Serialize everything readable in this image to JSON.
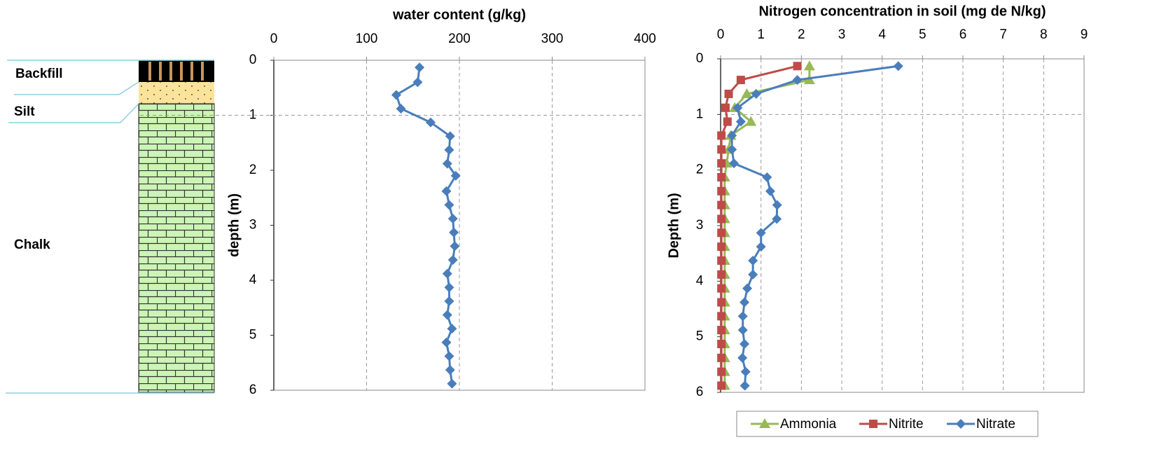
{
  "soil_column": {
    "layers": [
      "Backfill",
      "Silt",
      "Chalk"
    ]
  },
  "chart_data": [
    {
      "type": "line",
      "orientation": "vertical",
      "title": "water content (g/kg)",
      "ylabel": "depth (m)",
      "xlim": [
        0,
        400
      ],
      "xticks": [
        0,
        100,
        200,
        300,
        400
      ],
      "ylim": [
        0,
        6
      ],
      "yticks": [
        0,
        1,
        2,
        3,
        4,
        5,
        6
      ],
      "y_inverted": true,
      "grid": true,
      "hline": 1,
      "y": [
        0.13,
        0.4,
        0.63,
        0.88,
        1.13,
        1.38,
        1.63,
        1.88,
        2.1,
        2.38,
        2.63,
        2.88,
        3.13,
        3.38,
        3.63,
        3.88,
        4.13,
        4.38,
        4.63,
        4.88,
        5.13,
        5.38,
        5.63,
        5.88
      ],
      "series": [
        {
          "name": null,
          "color": "#4a7ebb",
          "marker": "diamond",
          "values": [
            157,
            155,
            132,
            137,
            169,
            190,
            189,
            187,
            196,
            186,
            189,
            193,
            194,
            195,
            193,
            187,
            189,
            189,
            187,
            192,
            186,
            189,
            190,
            192
          ]
        }
      ]
    },
    {
      "type": "line",
      "orientation": "vertical",
      "title": "Nitrogen concentration in soil (mg de N/kg)",
      "ylabel": "Depth (m)",
      "xlim": [
        0,
        9
      ],
      "xticks": [
        0,
        1,
        2,
        3,
        4,
        5,
        6,
        7,
        8,
        9
      ],
      "ylim": [
        0,
        6
      ],
      "yticks": [
        0,
        1,
        2,
        3,
        4,
        5,
        6
      ],
      "y_inverted": true,
      "grid": true,
      "hline": 1,
      "legend": "bottom",
      "y": [
        0.13,
        0.38,
        0.63,
        0.88,
        1.13,
        1.38,
        1.63,
        1.88,
        2.13,
        2.38,
        2.63,
        2.88,
        3.13,
        3.38,
        3.63,
        3.88,
        4.13,
        4.38,
        4.63,
        4.88,
        5.13,
        5.38,
        5.63,
        5.88
      ],
      "series": [
        {
          "name": "Ammonia",
          "color": "#98b954",
          "marker": "triangle",
          "values": [
            2.2,
            2.2,
            0.65,
            0.35,
            0.75,
            0.25,
            0.2,
            0.15,
            0.1,
            0.1,
            0.1,
            0.1,
            0.1,
            0.1,
            0.1,
            0.1,
            0.1,
            0.1,
            0.1,
            0.1,
            0.1,
            0.1,
            0.1,
            0.1
          ]
        },
        {
          "name": "Nitrite",
          "color": "#be4b48",
          "marker": "square",
          "values": [
            1.9,
            0.5,
            0.2,
            0.12,
            0.17,
            0.02,
            0.02,
            0.02,
            0.02,
            0.02,
            0.02,
            0.02,
            0.02,
            0.02,
            0.02,
            0.02,
            0.02,
            0.02,
            0.02,
            0.02,
            0.02,
            0.02,
            0.02,
            0.02
          ]
        },
        {
          "name": "Nitrate",
          "color": "#4a7ebb",
          "marker": "diamond",
          "values": [
            4.4,
            1.9,
            0.88,
            0.42,
            0.5,
            0.28,
            0.28,
            0.33,
            1.15,
            1.23,
            1.4,
            1.39,
            1.0,
            1.0,
            0.8,
            0.8,
            0.66,
            0.59,
            0.55,
            0.55,
            0.59,
            0.54,
            0.62,
            0.6
          ]
        }
      ]
    }
  ]
}
